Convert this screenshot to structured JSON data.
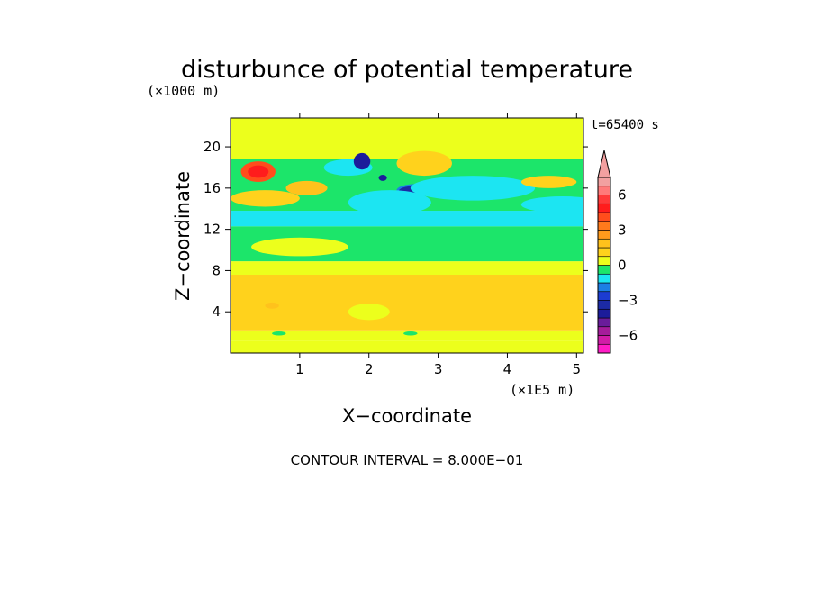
{
  "chart_data": {
    "type": "heatmap",
    "title": "disturbunce of potential temperature",
    "time_label": "t=65400 s",
    "xlabel": "X−coordinate",
    "ylabel": "Z−coordinate",
    "x_unit": "(×1E5 m)",
    "y_unit": "(×1000 m)",
    "xlim": [
      0,
      5.1
    ],
    "ylim": [
      0,
      22.8
    ],
    "x_ticks": [
      1,
      2,
      3,
      4,
      5
    ],
    "y_ticks": [
      4,
      8,
      12,
      16,
      20
    ],
    "x_tick_labels": [
      "1",
      "2",
      "3",
      "4",
      "5"
    ],
    "y_tick_labels": [
      "4",
      "8",
      "12",
      "16",
      "20"
    ],
    "footer": "CONTOUR INTERVAL = 8.000E−01",
    "colorbar": {
      "levels": [
        {
          "min": -8.0,
          "max": -7.2,
          "color": "#ff1cc6"
        },
        {
          "min": -7.2,
          "max": -6.4,
          "color": "#d11ca7"
        },
        {
          "min": -6.4,
          "max": -5.6,
          "color": "#a51c9a"
        },
        {
          "min": -5.6,
          "max": -4.8,
          "color": "#6a1c9a"
        },
        {
          "min": -4.8,
          "max": -4.0,
          "color": "#1c1c9a"
        },
        {
          "min": -4.0,
          "max": -3.2,
          "color": "#1c2aa5"
        },
        {
          "min": -3.2,
          "max": -2.4,
          "color": "#1c3cd1"
        },
        {
          "min": -2.4,
          "max": -1.6,
          "color": "#1c7ee5"
        },
        {
          "min": -1.6,
          "max": -0.8,
          "color": "#1ce5f2"
        },
        {
          "min": -0.8,
          "max": 0.0,
          "color": "#1ce56a"
        },
        {
          "min": 0.0,
          "max": 0.8,
          "color": "#ecff1c"
        },
        {
          "min": 0.8,
          "max": 1.6,
          "color": "#ffd21c"
        },
        {
          "min": 1.6,
          "max": 2.4,
          "color": "#ffc21c"
        },
        {
          "min": 2.4,
          "max": 3.2,
          "color": "#ff9a1c"
        },
        {
          "min": 3.2,
          "max": 4.0,
          "color": "#ff7a1c"
        },
        {
          "min": 4.0,
          "max": 4.8,
          "color": "#ff4d1c"
        },
        {
          "min": 4.8,
          "max": 5.6,
          "color": "#ff1c1c"
        },
        {
          "min": 5.6,
          "max": 6.4,
          "color": "#ff3a3a"
        },
        {
          "min": 6.4,
          "max": 7.2,
          "color": "#ff7a7a"
        },
        {
          "min": 7.2,
          "max": 8.0,
          "color": "#f2a0a0"
        }
      ],
      "tick_labels": [
        {
          "value": 6.4,
          "label": "6"
        },
        {
          "value": 3.2,
          "label": "3"
        },
        {
          "value": 0.0,
          "label": "0"
        },
        {
          "value": -3.2,
          "label": "−3"
        },
        {
          "value": -6.4,
          "label": "−6"
        }
      ]
    },
    "bands": [
      {
        "z0": 0.0,
        "z1": 1.2,
        "value": 0.4
      },
      {
        "z0": 1.2,
        "z1": 2.2,
        "value": 0.4
      },
      {
        "z0": 2.2,
        "z1": 7.6,
        "value": 1.2
      },
      {
        "z0": 7.6,
        "z1": 8.9,
        "value": 0.4
      },
      {
        "z0": 8.9,
        "z1": 12.3,
        "value": -0.4
      },
      {
        "z0": 12.3,
        "z1": 13.8,
        "value": -1.2
      },
      {
        "z0": 13.8,
        "z1": 18.8,
        "value": -0.4
      },
      {
        "z0": 18.8,
        "z1": 22.8,
        "value": 0.4
      }
    ],
    "features": [
      {
        "x": 0.4,
        "z": 17.6,
        "rx": 0.25,
        "rz": 1.0,
        "value": 4.4
      },
      {
        "x": 0.4,
        "z": 17.6,
        "rx": 0.15,
        "rz": 0.6,
        "value": 5.2
      },
      {
        "x": 0.5,
        "z": 15.0,
        "rx": 0.5,
        "rz": 0.8,
        "value": 1.2
      },
      {
        "x": 1.1,
        "z": 16.0,
        "rx": 0.3,
        "rz": 0.7,
        "value": 2.0
      },
      {
        "x": 1.7,
        "z": 18.0,
        "rx": 0.35,
        "rz": 0.8,
        "value": -1.2
      },
      {
        "x": 1.9,
        "z": 18.6,
        "rx": 0.12,
        "rz": 0.8,
        "value": -4.4
      },
      {
        "x": 2.2,
        "z": 17.0,
        "rx": 0.06,
        "rz": 0.3,
        "value": -4.4
      },
      {
        "x": 2.7,
        "z": 15.8,
        "rx": 0.3,
        "rz": 0.6,
        "value": -2.0
      },
      {
        "x": 2.65,
        "z": 15.7,
        "rx": 0.22,
        "rz": 0.5,
        "value": -3.6
      },
      {
        "x": 2.3,
        "z": 14.6,
        "rx": 0.6,
        "rz": 1.2,
        "value": -1.2
      },
      {
        "x": 3.5,
        "z": 16.0,
        "rx": 0.9,
        "rz": 1.2,
        "value": -1.2
      },
      {
        "x": 4.8,
        "z": 14.4,
        "rx": 0.6,
        "rz": 0.8,
        "value": -1.2
      },
      {
        "x": 2.8,
        "z": 18.4,
        "rx": 0.4,
        "rz": 1.2,
        "value": 1.2
      },
      {
        "x": 4.6,
        "z": 16.6,
        "rx": 0.4,
        "rz": 0.6,
        "value": 1.2
      },
      {
        "x": 1.0,
        "z": 10.3,
        "rx": 0.7,
        "rz": 0.9,
        "value": 0.4
      },
      {
        "x": 2.0,
        "z": 4.0,
        "rx": 0.3,
        "rz": 0.8,
        "value": 0.4
      },
      {
        "x": 0.6,
        "z": 4.6,
        "rx": 0.1,
        "rz": 0.3,
        "value": 2.0
      },
      {
        "x": 2.6,
        "z": 1.9,
        "rx": 0.1,
        "rz": 0.2,
        "value": -0.4
      },
      {
        "x": 0.7,
        "z": 1.9,
        "rx": 0.1,
        "rz": 0.2,
        "value": -0.4
      }
    ]
  }
}
